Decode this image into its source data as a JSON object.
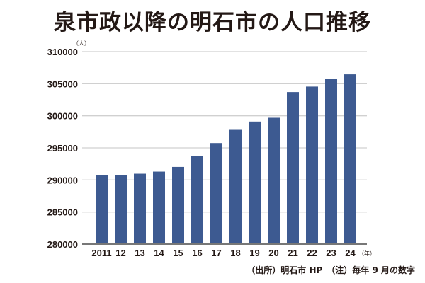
{
  "chart_data": {
    "type": "bar",
    "title": "泉市政以降の明石市の人口推移",
    "ylabel": "（人）",
    "xlabel": "（年）",
    "categories": [
      "2011",
      "12",
      "13",
      "14",
      "15",
      "16",
      "17",
      "18",
      "19",
      "20",
      "21",
      "22",
      "23",
      "24"
    ],
    "values": [
      290780,
      290750,
      290970,
      291300,
      292030,
      293730,
      295750,
      297810,
      299100,
      299690,
      303700,
      304550,
      305800,
      306460
    ],
    "ylim": [
      280000,
      310000
    ],
    "yticks": [
      280000,
      285000,
      290000,
      295000,
      300000,
      305000,
      310000
    ],
    "grid": true,
    "bar_color": "#3d5a91",
    "source": "（出所）明石市 HP　（注）毎年 9 月の数字"
  }
}
